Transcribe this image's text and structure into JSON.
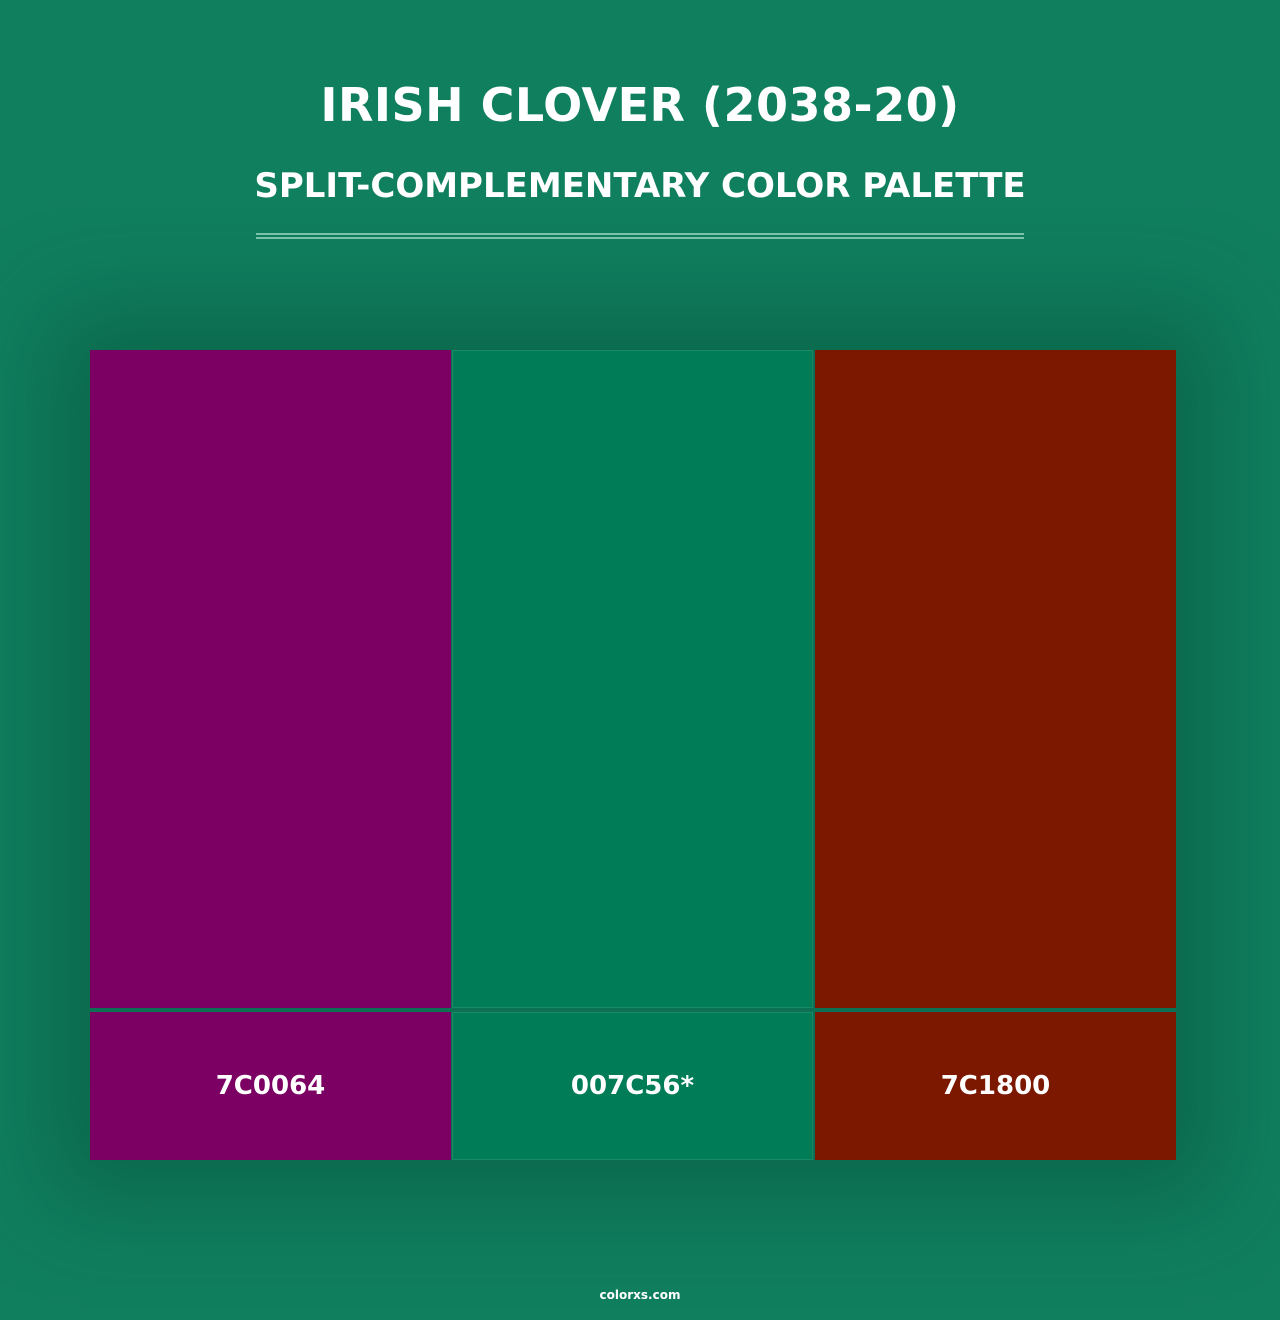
{
  "header": {
    "title": "IRISH CLOVER (2038-20)",
    "subtitle": "SPLIT-COMPLEMENTARY COLOR PALETTE"
  },
  "palette": [
    {
      "label": "7C0064",
      "color": "#7c0064"
    },
    {
      "label": "007C56*",
      "color": "#007c56"
    },
    {
      "label": "7C1800",
      "color": "#7c1800"
    }
  ],
  "footer": {
    "site": "colorxs.com"
  },
  "colors": {
    "background": "#107f5e"
  }
}
